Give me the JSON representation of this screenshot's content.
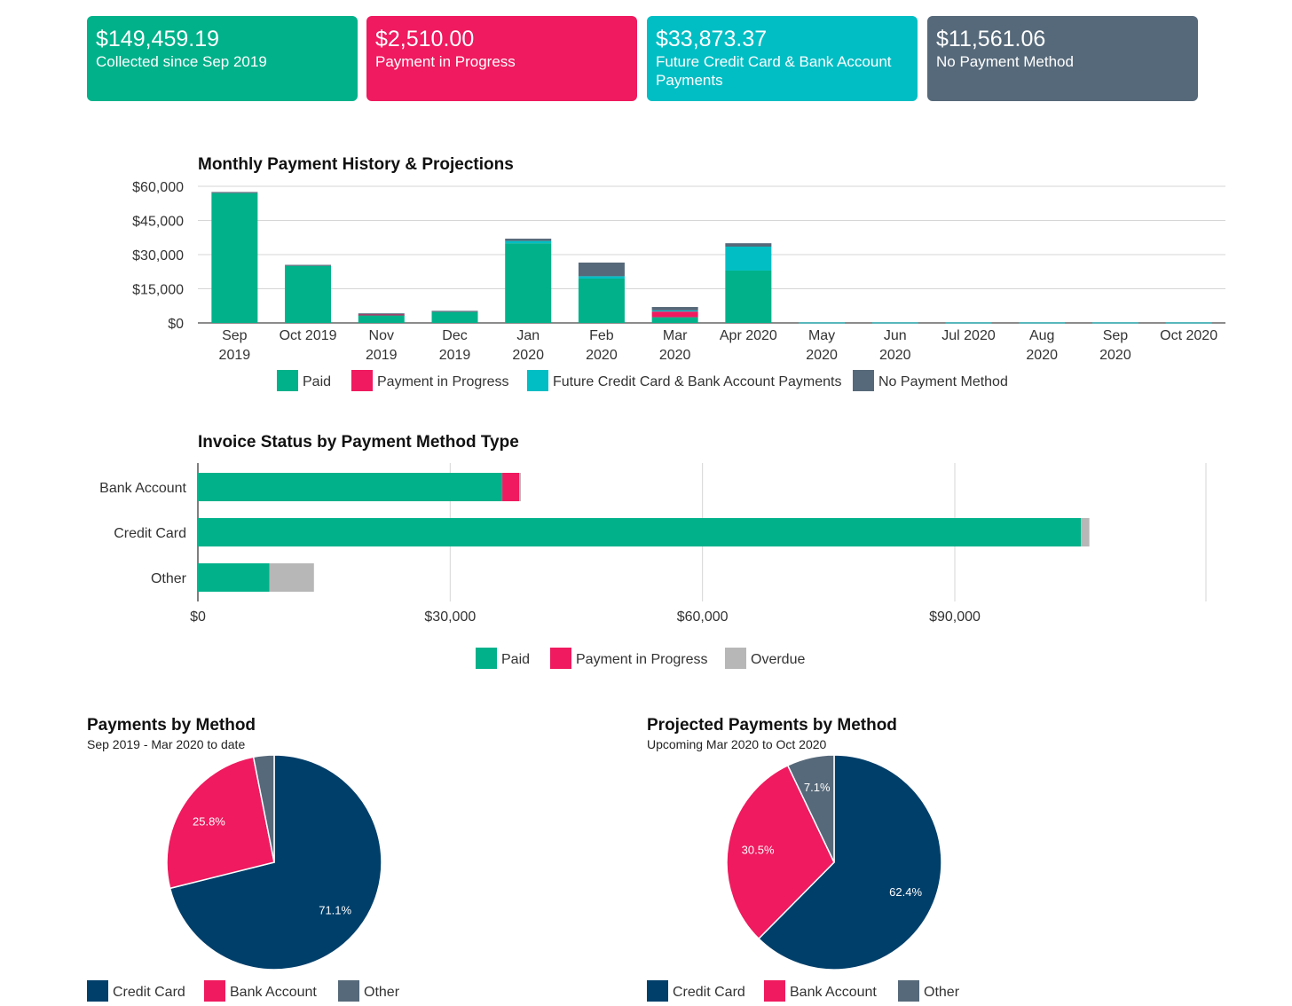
{
  "colors": {
    "paid": "#00b18a",
    "progress": "#ef1a5f",
    "future": "#00bec4",
    "no_method": "#56697a",
    "overdue": "#b7b7b7",
    "credit_card": "#003f6a",
    "bank_account": "#ef1a5f",
    "other": "#56697a"
  },
  "cards": [
    {
      "amount": "$149,459.19",
      "caption": "Collected since Sep 2019",
      "color": "#00b18a"
    },
    {
      "amount": "$2,510.00",
      "caption": "Payment in Progress",
      "color": "#ef1a5f"
    },
    {
      "amount": "$33,873.37",
      "caption": "Future Credit Card & Bank Account Payments",
      "color": "#00bec4"
    },
    {
      "amount": "$11,561.06",
      "caption": "No Payment Method",
      "color": "#56697a"
    }
  ],
  "chart_data": [
    {
      "type": "bar",
      "stacked": true,
      "title": "Monthly Payment History & Projections",
      "categories": [
        [
          "Sep",
          "2019"
        ],
        [
          "Oct 2019"
        ],
        [
          "Nov",
          "2019"
        ],
        [
          "Dec",
          "2019"
        ],
        [
          "Jan",
          "2020"
        ],
        [
          "Feb",
          "2020"
        ],
        [
          "Mar",
          "2020"
        ],
        [
          "Apr 2020"
        ],
        [
          "May",
          "2020"
        ],
        [
          "Jun",
          "2020"
        ],
        [
          "Jul 2020"
        ],
        [
          "Aug",
          "2020"
        ],
        [
          "Sep",
          "2020"
        ],
        [
          "Oct 2020"
        ]
      ],
      "ylim": [
        0,
        60000
      ],
      "yticks": [
        0,
        15000,
        30000,
        45000,
        60000
      ],
      "ytick_labels": [
        "$0",
        "$15,000",
        "$30,000",
        "$45,000",
        "$60,000"
      ],
      "grid": true,
      "legend_position": "bottom",
      "series": [
        {
          "name": "Paid",
          "color_key": "paid",
          "values": [
            57000,
            25000,
            3500,
            4800,
            35000,
            19500,
            2500,
            23000,
            0,
            0,
            0,
            0,
            0,
            0
          ]
        },
        {
          "name": "Payment in Progress",
          "color_key": "progress",
          "values": [
            0,
            0,
            200,
            0,
            0,
            0,
            2500,
            0,
            0,
            0,
            0,
            0,
            0,
            0
          ]
        },
        {
          "name": "Future Credit Card & Bank Account Payments",
          "color_key": "future",
          "values": [
            0,
            0,
            0,
            0,
            1000,
            1000,
            500,
            10500,
            200,
            200,
            200,
            200,
            200,
            200
          ]
        },
        {
          "name": "No Payment Method",
          "color_key": "no_method",
          "values": [
            500,
            500,
            500,
            500,
            1000,
            6000,
            1500,
            1500,
            0,
            0,
            0,
            0,
            0,
            0
          ]
        }
      ]
    },
    {
      "type": "bar",
      "orientation": "horizontal",
      "stacked": true,
      "title": "Invoice Status by Payment Method Type",
      "categories": [
        "Bank Account",
        "Credit Card",
        "Other"
      ],
      "xlim": [
        0,
        120000
      ],
      "xticks": [
        0,
        30000,
        60000,
        90000
      ],
      "xtick_labels": [
        "$0",
        "$30,000",
        "$60,000",
        "$90,000"
      ],
      "grid": true,
      "legend_position": "bottom",
      "series": [
        {
          "name": "Paid",
          "color_key": "paid",
          "values": [
            36200,
            105000,
            8500
          ]
        },
        {
          "name": "Payment in Progress",
          "color_key": "progress",
          "values": [
            2000,
            0,
            0
          ]
        },
        {
          "name": "Overdue",
          "color_key": "overdue",
          "values": [
            200,
            1000,
            5300
          ]
        }
      ]
    },
    {
      "type": "pie",
      "title": "Payments by Method",
      "subtitle": "Sep 2019 - Mar 2020 to date",
      "legend_position": "bottom",
      "slices": [
        {
          "label": "Credit Card",
          "value": 71.1,
          "display": "71.1%",
          "color_key": "credit_card"
        },
        {
          "label": "Bank Account",
          "value": 25.8,
          "display": "25.8%",
          "color_key": "bank_account"
        },
        {
          "label": "Other",
          "value": 3.1,
          "display": "",
          "color_key": "other"
        }
      ]
    },
    {
      "type": "pie",
      "title": "Projected Payments by Method",
      "subtitle": "Upcoming Mar 2020 to Oct 2020",
      "legend_position": "bottom",
      "slices": [
        {
          "label": "Credit Card",
          "value": 62.4,
          "display": "62.4%",
          "color_key": "credit_card"
        },
        {
          "label": "Bank Account",
          "value": 30.5,
          "display": "30.5%",
          "color_key": "bank_account"
        },
        {
          "label": "Other",
          "value": 7.1,
          "display": "7.1%",
          "color_key": "other"
        }
      ]
    }
  ]
}
